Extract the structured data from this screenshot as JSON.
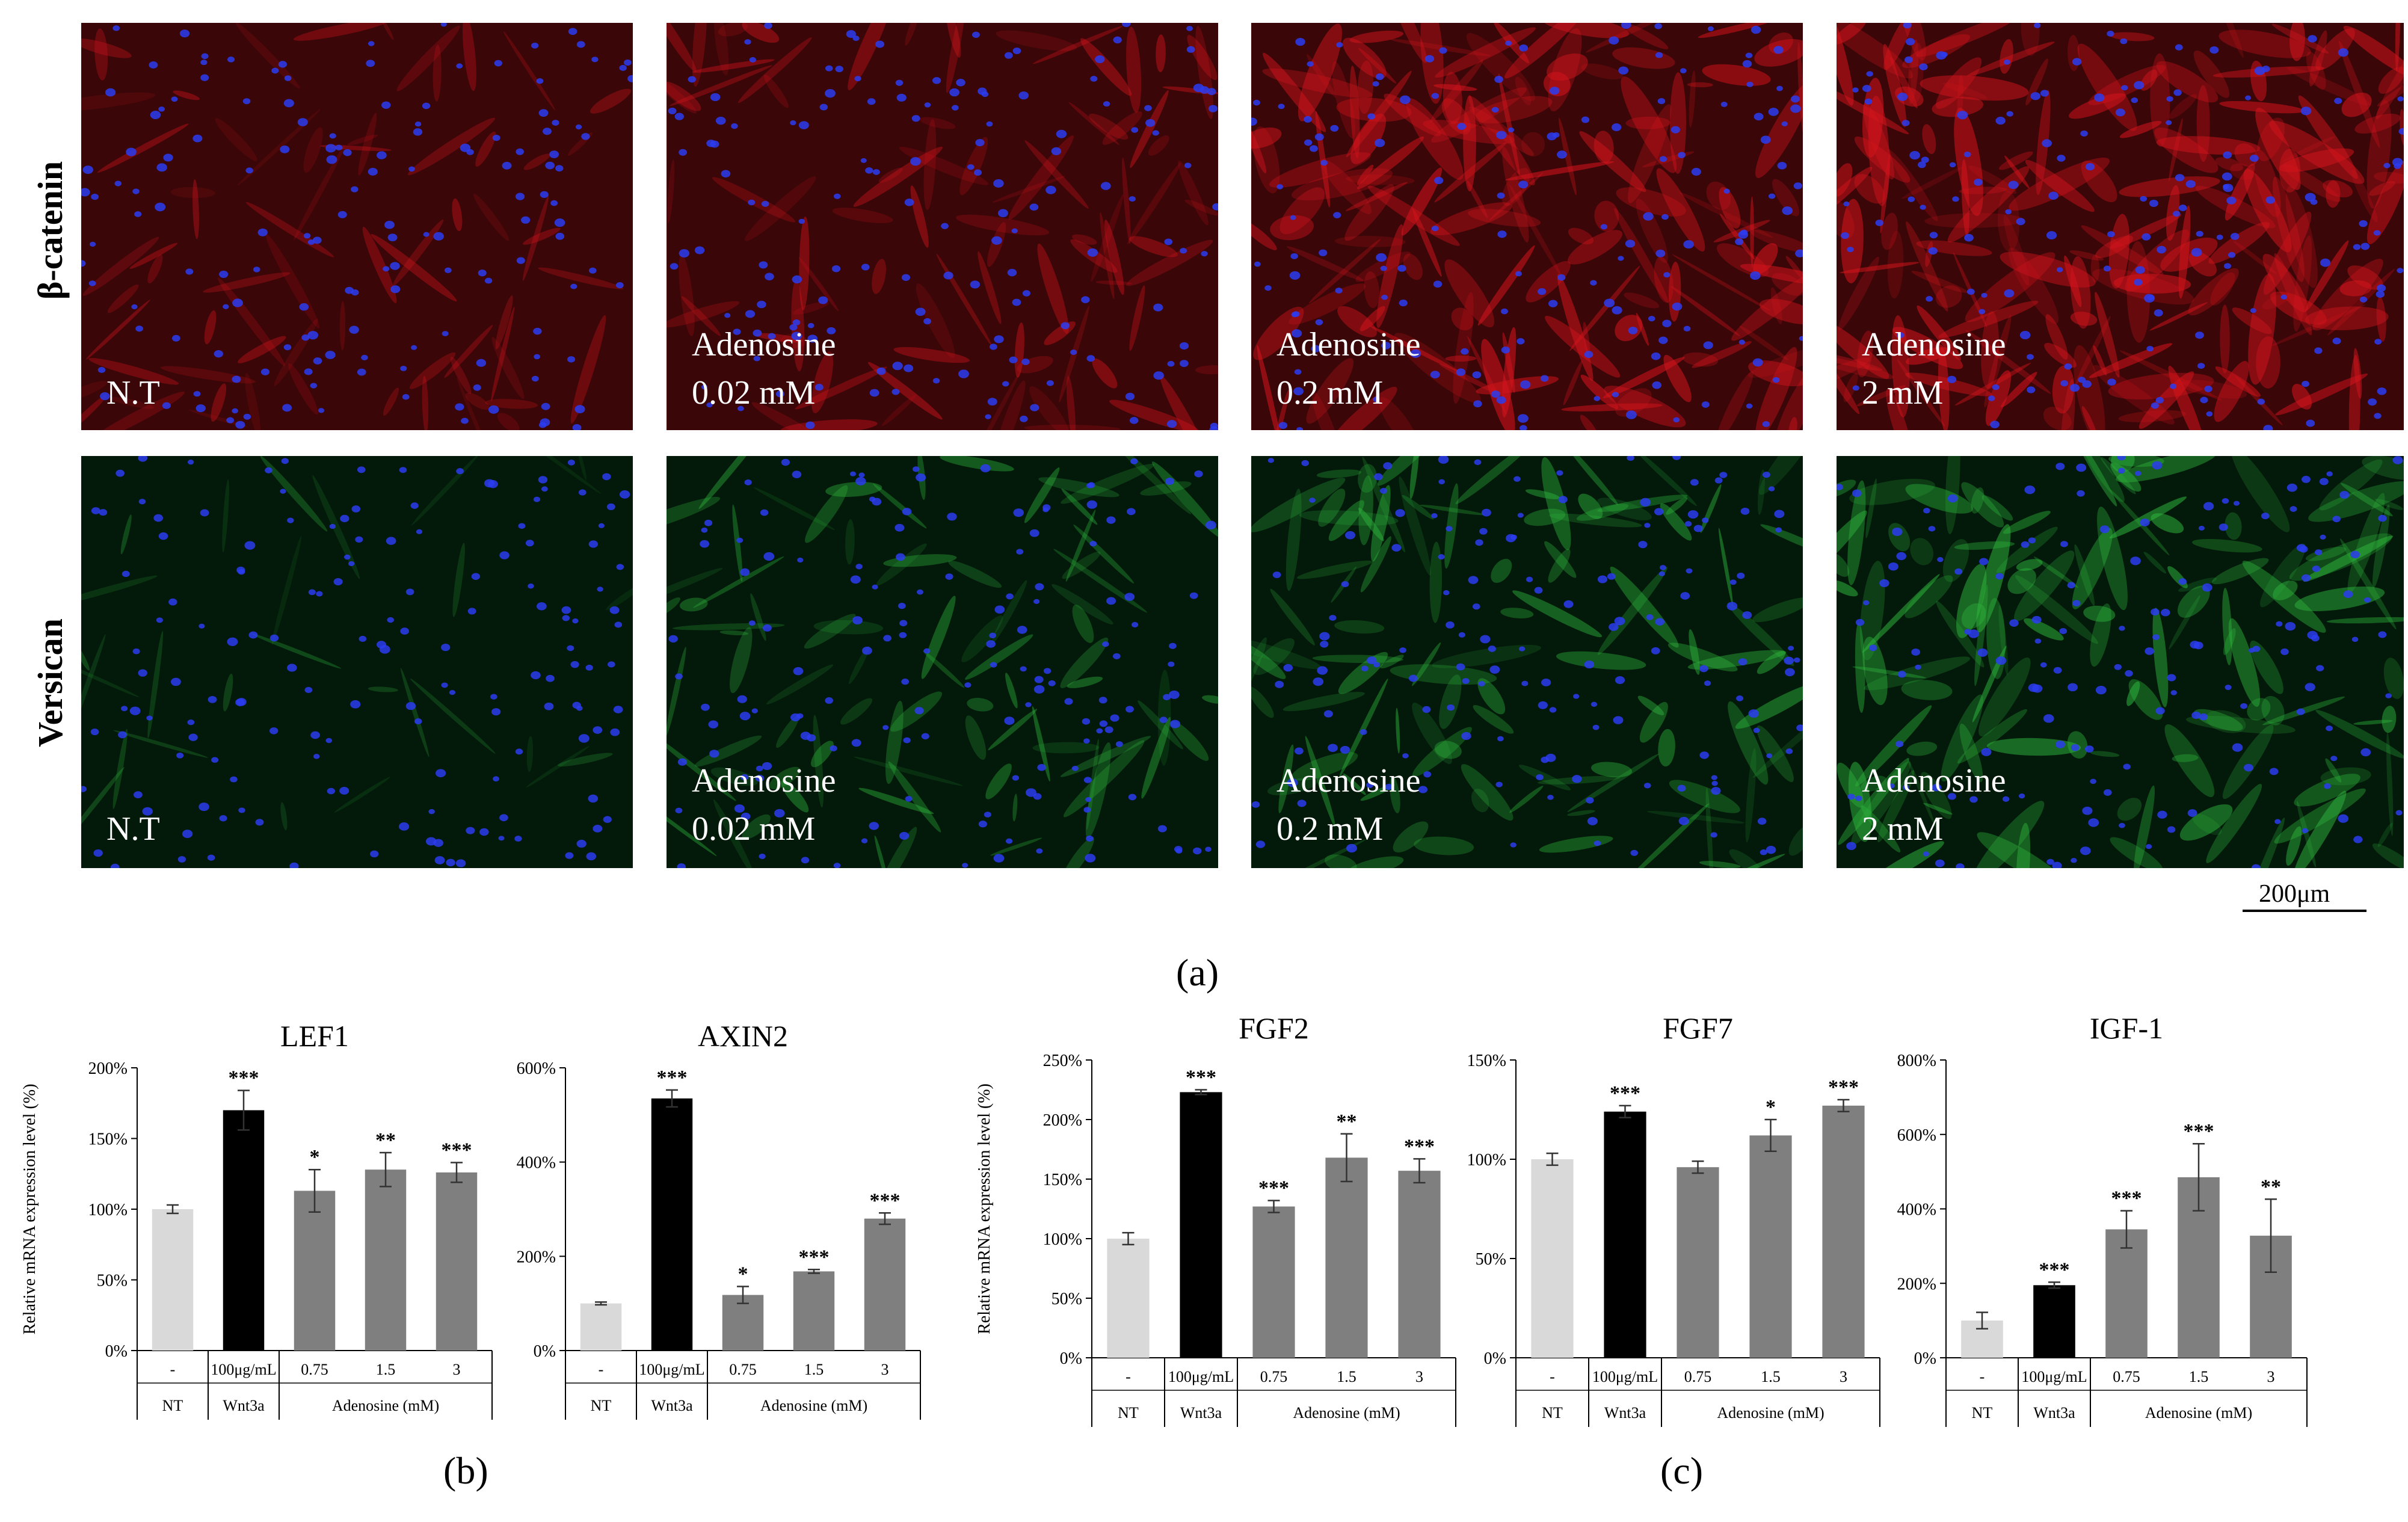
{
  "figure": {
    "row_labels": [
      "β-catenin",
      "Versican"
    ],
    "panel_conditions": [
      [
        "N.T"
      ],
      [
        "Adenosine",
        "0.02 mM"
      ],
      [
        "Adenosine",
        "0.2 mM"
      ],
      [
        "Adenosine",
        "2 mM"
      ]
    ],
    "scale_bar": "200μm",
    "panel_letters": [
      "(a)",
      "(b)",
      "(c)"
    ],
    "colors": {
      "beta_catenin_background": "#3a0608",
      "beta_catenin_signal": "#d4141c",
      "versican_background": "#03190a",
      "versican_signal": "#2eb43c",
      "nucleus": "#2b3cf0",
      "bar_nt": "#d9d9d9",
      "bar_wnt3a": "#000000",
      "bar_adenosine": "#7f7f7f"
    }
  },
  "chart_data": [
    {
      "type": "bar",
      "title": "LEF1",
      "ylabel": "Relative mRNA expression level (%)",
      "ylim": [
        0,
        200
      ],
      "yticks": [
        "0%",
        "50%",
        "100%",
        "150%",
        "200%"
      ],
      "categories": [
        "-",
        "100μg/mL",
        "0.75",
        "1.5",
        "3"
      ],
      "groups": [
        "NT",
        "Wnt3a",
        "Adenosine (mM)"
      ],
      "values": [
        100,
        170,
        113,
        128,
        126
      ],
      "errors": [
        3,
        14,
        15,
        12,
        7
      ],
      "significance": [
        "",
        "***",
        "*",
        "**",
        "***"
      ]
    },
    {
      "type": "bar",
      "title": "AXIN2",
      "ylabel": "",
      "ylim": [
        0,
        600
      ],
      "yticks": [
        "0%",
        "200%",
        "400%",
        "600%"
      ],
      "categories": [
        "-",
        "100μg/mL",
        "0.75",
        "1.5",
        "3"
      ],
      "groups": [
        "NT",
        "Wnt3a",
        "Adenosine (mM)"
      ],
      "values": [
        100,
        535,
        118,
        168,
        280
      ],
      "errors": [
        3,
        18,
        18,
        4,
        12
      ],
      "significance": [
        "",
        "***",
        "*",
        "***",
        "***"
      ]
    },
    {
      "type": "bar",
      "title": "FGF2",
      "ylabel": "Relative mRNA expression level (%)",
      "ylim": [
        0,
        250
      ],
      "yticks": [
        "0%",
        "50%",
        "100%",
        "150%",
        "200%",
        "250%"
      ],
      "categories": [
        "-",
        "100μg/mL",
        "0.75",
        "1.5",
        "3"
      ],
      "groups": [
        "NT",
        "Wnt3a",
        "Adenosine (mM)"
      ],
      "values": [
        100,
        223,
        127,
        168,
        157
      ],
      "errors": [
        5,
        2,
        5,
        20,
        10
      ],
      "significance": [
        "",
        "***",
        "***",
        "**",
        "***"
      ]
    },
    {
      "type": "bar",
      "title": "FGF7",
      "ylabel": "",
      "ylim": [
        0,
        150
      ],
      "yticks": [
        "0%",
        "50%",
        "100%",
        "150%"
      ],
      "categories": [
        "-",
        "100μg/mL",
        "0.75",
        "1.5",
        "3"
      ],
      "groups": [
        "NT",
        "Wnt3a",
        "Adenosine (mM)"
      ],
      "values": [
        100,
        124,
        96,
        112,
        127
      ],
      "errors": [
        3,
        3,
        3,
        8,
        3
      ],
      "significance": [
        "",
        "***",
        "",
        "*",
        "***"
      ]
    },
    {
      "type": "bar",
      "title": "IGF-1",
      "ylabel": "",
      "ylim": [
        0,
        800
      ],
      "yticks": [
        "0%",
        "200%",
        "400%",
        "600%",
        "800%"
      ],
      "categories": [
        "-",
        "100μg/mL",
        "0.75",
        "1.5",
        "3"
      ],
      "groups": [
        "NT",
        "Wnt3a",
        "Adenosine (mM)"
      ],
      "values": [
        100,
        195,
        345,
        485,
        328
      ],
      "errors": [
        22,
        8,
        50,
        90,
        98
      ],
      "significance": [
        "",
        "***",
        "***",
        "***",
        "**"
      ]
    }
  ]
}
